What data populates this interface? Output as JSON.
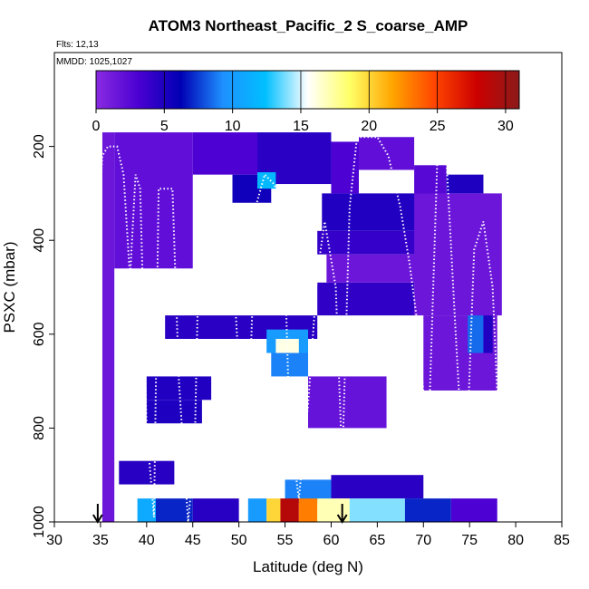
{
  "chart_data": {
    "type": "heatmap",
    "title": "ATOM3 Northeast_Pacific_2 S_coarse_AMP",
    "flights_label": "Flts: 12,13",
    "dates_label": "MMDD: 1025,1027",
    "xlabel": "Latitude (deg N)",
    "ylabel": "PSXC (mbar)",
    "xlim": [
      30,
      85
    ],
    "ylim": [
      1000,
      0
    ],
    "x_ticks": [
      30,
      35,
      40,
      45,
      50,
      55,
      60,
      65,
      70,
      75,
      80,
      85
    ],
    "x_tick_labels": [
      "30",
      "35",
      "40",
      "45",
      "50",
      "55",
      "60",
      "65",
      "70",
      "75",
      "80",
      "85"
    ],
    "y_ticks": [
      200,
      400,
      600,
      800,
      1000
    ],
    "y_tick_labels": [
      "200",
      "400",
      "600",
      "800",
      "1000"
    ],
    "colorbar": {
      "min": 0,
      "max": 31,
      "ticks": [
        0,
        5,
        10,
        15,
        20,
        25,
        30
      ],
      "tick_labels": [
        "0",
        "5",
        "10",
        "15",
        "20",
        "25",
        "30"
      ],
      "colors": [
        "#8a2be2",
        "#4b00d2",
        "#0000b4",
        "#1e90ff",
        "#00bfff",
        "#ffffff",
        "#ffff66",
        "#ffa500",
        "#ff4500",
        "#cc0000",
        "#8b1a1a"
      ]
    },
    "arrows_latitude": [
      34.7,
      61.2
    ],
    "cells": [
      {
        "lat0": 35.2,
        "lat1": 36.5,
        "p0": 170,
        "p1": 1000,
        "v": 1.5
      },
      {
        "lat0": 36.5,
        "lat1": 45,
        "p0": 170,
        "p1": 460,
        "v": 2
      },
      {
        "lat0": 45,
        "lat1": 52,
        "p0": 170,
        "p1": 260,
        "v": 3
      },
      {
        "lat0": 52,
        "lat1": 60,
        "p0": 170,
        "p1": 280,
        "v": 4.5
      },
      {
        "lat0": 60,
        "lat1": 63,
        "p0": 190,
        "p1": 300,
        "v": 3
      },
      {
        "lat0": 63,
        "lat1": 69,
        "p0": 180,
        "p1": 250,
        "v": 2
      },
      {
        "lat0": 49.3,
        "lat1": 53.5,
        "p0": 260,
        "p1": 320,
        "v": 5.5
      },
      {
        "lat0": 52,
        "lat1": 54,
        "p0": 255,
        "p1": 290,
        "v": 12
      },
      {
        "lat0": 69,
        "lat1": 72.5,
        "p0": 240,
        "p1": 420,
        "v": 2.5
      },
      {
        "lat0": 72.5,
        "lat1": 76.5,
        "p0": 260,
        "p1": 300,
        "v": 5
      },
      {
        "lat0": 59,
        "lat1": 71,
        "p0": 300,
        "p1": 380,
        "v": 4.8
      },
      {
        "lat0": 58.5,
        "lat1": 70,
        "p0": 380,
        "p1": 430,
        "v": 4
      },
      {
        "lat0": 59.5,
        "lat1": 70,
        "p0": 430,
        "p1": 490,
        "v": 1.5
      },
      {
        "lat0": 58.5,
        "lat1": 69,
        "p0": 490,
        "p1": 560,
        "v": 4.2
      },
      {
        "lat0": 69,
        "lat1": 78.5,
        "p0": 300,
        "p1": 560,
        "v": 1.5
      },
      {
        "lat0": 70,
        "lat1": 78,
        "p0": 560,
        "p1": 720,
        "v": 1.5
      },
      {
        "lat0": 74.8,
        "lat1": 76.5,
        "p0": 560,
        "p1": 640,
        "v": 8.5
      },
      {
        "lat0": 76.5,
        "lat1": 77.5,
        "p0": 560,
        "p1": 640,
        "v": 4.8
      },
      {
        "lat0": 42,
        "lat1": 58.5,
        "p0": 560,
        "p1": 610,
        "v": 4.5
      },
      {
        "lat0": 53,
        "lat1": 57.5,
        "p0": 590,
        "p1": 640,
        "v": 10
      },
      {
        "lat0": 54,
        "lat1": 56.5,
        "p0": 610,
        "p1": 660,
        "v": 16
      },
      {
        "lat0": 53.5,
        "lat1": 57.5,
        "p0": 640,
        "p1": 690,
        "v": 9
      },
      {
        "lat0": 40,
        "lat1": 47,
        "p0": 690,
        "p1": 740,
        "v": 4.8
      },
      {
        "lat0": 40,
        "lat1": 46,
        "p0": 740,
        "p1": 790,
        "v": 5
      },
      {
        "lat0": 57.5,
        "lat1": 66,
        "p0": 690,
        "p1": 800,
        "v": 1.8
      },
      {
        "lat0": 37,
        "lat1": 43,
        "p0": 870,
        "p1": 920,
        "v": 4.6
      },
      {
        "lat0": 55,
        "lat1": 60,
        "p0": 910,
        "p1": 960,
        "v": 9
      },
      {
        "lat0": 60,
        "lat1": 70,
        "p0": 900,
        "p1": 950,
        "v": 4.5
      },
      {
        "lat0": 39,
        "lat1": 41,
        "p0": 950,
        "p1": 1000,
        "v": 11
      },
      {
        "lat0": 41,
        "lat1": 45,
        "p0": 950,
        "p1": 1000,
        "v": 7
      },
      {
        "lat0": 45,
        "lat1": 50,
        "p0": 950,
        "p1": 1000,
        "v": 4.6
      },
      {
        "lat0": 51,
        "lat1": 53,
        "p0": 950,
        "p1": 1000,
        "v": 10
      },
      {
        "lat0": 53,
        "lat1": 54.5,
        "p0": 950,
        "p1": 1000,
        "v": 20
      },
      {
        "lat0": 54.5,
        "lat1": 56.5,
        "p0": 950,
        "p1": 1000,
        "v": 29
      },
      {
        "lat0": 56.5,
        "lat1": 58.5,
        "p0": 950,
        "p1": 1000,
        "v": 23
      },
      {
        "lat0": 58.5,
        "lat1": 62,
        "p0": 950,
        "p1": 1000,
        "v": 17
      },
      {
        "lat0": 62,
        "lat1": 68,
        "p0": 950,
        "p1": 1000,
        "v": 14
      },
      {
        "lat0": 68,
        "lat1": 73,
        "p0": 950,
        "p1": 1000,
        "v": 7
      },
      {
        "lat0": 73,
        "lat1": 78,
        "p0": 950,
        "p1": 1000,
        "v": 3
      }
    ],
    "flight_track": [
      [
        34.5,
        440
      ],
      [
        35.2,
        220
      ],
      [
        35.8,
        200
      ],
      [
        36.8,
        200
      ],
      [
        37.5,
        260
      ],
      [
        38.2,
        480
      ],
      [
        38.8,
        260
      ],
      [
        39.3,
        290
      ],
      [
        40.0,
        800
      ],
      [
        40.8,
        990
      ],
      [
        41.3,
        290
      ],
      [
        42.8,
        290
      ],
      [
        43.5,
        700
      ],
      [
        44.5,
        1000
      ],
      [
        45.2,
        850
      ],
      [
        45.8,
        290
      ],
      [
        48.5,
        290
      ],
      [
        49.5,
        500
      ],
      [
        50.8,
        950
      ],
      [
        51.8,
        330
      ],
      [
        52.8,
        260
      ],
      [
        53.8,
        280
      ],
      [
        54.8,
        330
      ],
      [
        55.2,
        600
      ],
      [
        55.5,
        800
      ],
      [
        56.5,
        950
      ],
      [
        57.5,
        750
      ],
      [
        58.5,
        470
      ],
      [
        59.3,
        360
      ],
      [
        60.5,
        500
      ],
      [
        61.2,
        880
      ],
      [
        62.0,
        330
      ],
      [
        62.8,
        180
      ],
      [
        65.0,
        180
      ],
      [
        66.2,
        220
      ],
      [
        67.5,
        330
      ],
      [
        68.5,
        450
      ],
      [
        69.5,
        600
      ],
      [
        70.5,
        850
      ],
      [
        71.5,
        230
      ],
      [
        72.5,
        230
      ],
      [
        73.5,
        600
      ],
      [
        74.5,
        950
      ],
      [
        75.5,
        420
      ],
      [
        76.5,
        360
      ],
      [
        77.5,
        500
      ],
      [
        78.5,
        950
      ],
      [
        79.2,
        450
      ]
    ]
  }
}
